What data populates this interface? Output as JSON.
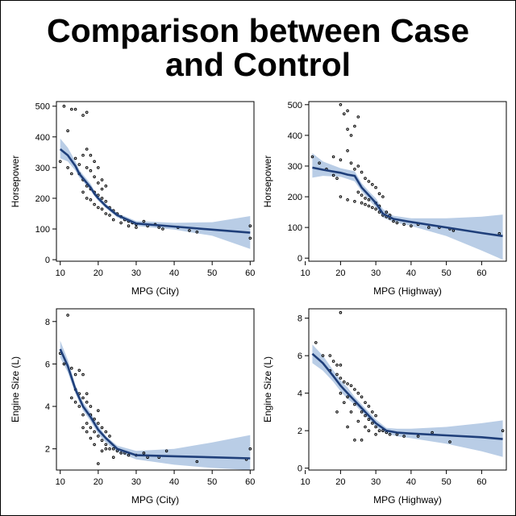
{
  "title_lines": [
    "Comparison between Case",
    "and Control"
  ],
  "colors": {
    "background": "#ffffff",
    "frame": "#000000",
    "fit_line": "#1f3f7a",
    "confidence_band": "#b9cde6",
    "points": "#000000"
  },
  "chart_data": [
    {
      "type": "scatter",
      "xlabel": "MPG (City)",
      "ylabel": "Horsepower",
      "xlim": [
        9,
        61
      ],
      "ylim": [
        -5,
        515
      ],
      "xticks": [
        10,
        20,
        30,
        40,
        50,
        60
      ],
      "yticks": [
        0,
        100,
        200,
        300,
        400,
        500
      ],
      "grid": false,
      "points": [
        [
          11,
          500
        ],
        [
          12,
          420
        ],
        [
          13,
          490
        ],
        [
          14,
          490
        ],
        [
          16,
          470
        ],
        [
          17,
          480
        ],
        [
          14,
          330
        ],
        [
          15,
          310
        ],
        [
          16,
          340
        ],
        [
          17,
          360
        ],
        [
          17,
          300
        ],
        [
          18,
          340
        ],
        [
          18,
          290
        ],
        [
          19,
          320
        ],
        [
          19,
          270
        ],
        [
          20,
          300
        ],
        [
          20,
          250
        ],
        [
          21,
          260
        ],
        [
          21,
          230
        ],
        [
          22,
          240
        ],
        [
          15,
          280
        ],
        [
          16,
          260
        ],
        [
          17,
          240
        ],
        [
          18,
          230
        ],
        [
          19,
          220
        ],
        [
          20,
          210
        ],
        [
          21,
          200
        ],
        [
          22,
          190
        ],
        [
          23,
          170
        ],
        [
          24,
          160
        ],
        [
          25,
          150
        ],
        [
          26,
          140
        ],
        [
          27,
          130
        ],
        [
          28,
          125
        ],
        [
          29,
          120
        ],
        [
          30,
          115
        ],
        [
          32,
          125
        ],
        [
          33,
          110
        ],
        [
          35,
          115
        ],
        [
          36,
          105
        ],
        [
          37,
          100
        ],
        [
          41,
          105
        ],
        [
          44,
          95
        ],
        [
          46,
          90
        ],
        [
          60,
          110
        ],
        [
          60,
          70
        ],
        [
          10,
          320
        ],
        [
          12,
          300
        ],
        [
          13,
          280
        ],
        [
          16,
          220
        ],
        [
          17,
          200
        ],
        [
          18,
          195
        ],
        [
          19,
          180
        ],
        [
          20,
          170
        ],
        [
          21,
          165
        ],
        [
          22,
          150
        ],
        [
          23,
          145
        ],
        [
          24,
          130
        ],
        [
          26,
          120
        ],
        [
          28,
          110
        ],
        [
          30,
          105
        ]
      ],
      "fit_x": [
        10,
        12,
        14,
        15,
        16,
        17,
        18,
        19,
        20,
        22,
        25,
        30,
        40,
        50,
        60
      ],
      "fit_y": [
        360,
        340,
        305,
        280,
        265,
        250,
        235,
        215,
        200,
        175,
        145,
        118,
        108,
        98,
        88
      ],
      "band_lower": [
        330,
        320,
        290,
        268,
        255,
        240,
        225,
        207,
        192,
        168,
        138,
        110,
        98,
        78,
        35
      ],
      "band_upper": [
        395,
        365,
        320,
        293,
        277,
        262,
        247,
        225,
        210,
        182,
        152,
        126,
        120,
        122,
        142
      ]
    },
    {
      "type": "scatter",
      "xlabel": "MPG (Highway)",
      "ylabel": "Horsepower",
      "xlim": [
        11,
        67
      ],
      "ylim": [
        -10,
        510
      ],
      "xticks": [
        10,
        20,
        30,
        40,
        50,
        60
      ],
      "yticks": [
        0,
        100,
        200,
        300,
        400,
        500
      ],
      "grid": false,
      "points": [
        [
          20,
          500
        ],
        [
          21,
          470
        ],
        [
          22,
          480
        ],
        [
          22,
          420
        ],
        [
          23,
          400
        ],
        [
          24,
          430
        ],
        [
          25,
          460
        ],
        [
          18,
          330
        ],
        [
          20,
          320
        ],
        [
          22,
          350
        ],
        [
          23,
          310
        ],
        [
          24,
          290
        ],
        [
          25,
          300
        ],
        [
          26,
          280
        ],
        [
          27,
          260
        ],
        [
          28,
          250
        ],
        [
          29,
          240
        ],
        [
          30,
          230
        ],
        [
          31,
          210
        ],
        [
          32,
          200
        ],
        [
          20,
          200
        ],
        [
          22,
          190
        ],
        [
          24,
          185
        ],
        [
          26,
          180
        ],
        [
          27,
          175
        ],
        [
          28,
          170
        ],
        [
          29,
          165
        ],
        [
          30,
          160
        ],
        [
          31,
          150
        ],
        [
          32,
          140
        ],
        [
          33,
          135
        ],
        [
          34,
          130
        ],
        [
          35,
          120
        ],
        [
          36,
          115
        ],
        [
          38,
          110
        ],
        [
          40,
          105
        ],
        [
          42,
          110
        ],
        [
          45,
          100
        ],
        [
          48,
          100
        ],
        [
          51,
          95
        ],
        [
          52,
          90
        ],
        [
          65,
          80
        ],
        [
          12,
          330
        ],
        [
          14,
          310
        ],
        [
          16,
          290
        ],
        [
          18,
          270
        ],
        [
          19,
          260
        ],
        [
          25,
          215
        ],
        [
          26,
          205
        ],
        [
          27,
          195
        ],
        [
          28,
          190
        ],
        [
          30,
          180
        ],
        [
          31,
          170
        ],
        [
          33,
          150
        ],
        [
          34,
          140
        ]
      ],
      "fit_x": [
        12,
        15,
        20,
        22,
        24,
        26,
        28,
        30,
        32,
        35,
        40,
        50,
        60,
        66
      ],
      "fit_y": [
        295,
        288,
        278,
        272,
        268,
        230,
        205,
        180,
        145,
        128,
        118,
        100,
        82,
        72
      ],
      "band_lower": [
        262,
        268,
        265,
        258,
        250,
        218,
        190,
        165,
        132,
        118,
        105,
        72,
        25,
        -5
      ],
      "band_upper": [
        342,
        315,
        293,
        288,
        283,
        244,
        218,
        195,
        160,
        138,
        130,
        130,
        135,
        142
      ]
    },
    {
      "type": "scatter",
      "xlabel": "MPG (City)",
      "ylabel": "Engine Size (L)",
      "xlim": [
        9,
        61
      ],
      "ylim": [
        1.0,
        8.6
      ],
      "xticks": [
        10,
        20,
        30,
        40,
        50,
        60
      ],
      "yticks": [
        2,
        4,
        6,
        8
      ],
      "grid": false,
      "points": [
        [
          12,
          8.3
        ],
        [
          10,
          6.5
        ],
        [
          11,
          6.0
        ],
        [
          13,
          5.8
        ],
        [
          14,
          5.5
        ],
        [
          15,
          5.7
        ],
        [
          16,
          5.5
        ],
        [
          14,
          4.8
        ],
        [
          15,
          4.6
        ],
        [
          16,
          4.4
        ],
        [
          17,
          4.2
        ],
        [
          17,
          4.6
        ],
        [
          18,
          4.0
        ],
        [
          18,
          3.6
        ],
        [
          19,
          3.4
        ],
        [
          20,
          3.2
        ],
        [
          20,
          3.8
        ],
        [
          21,
          3.0
        ],
        [
          22,
          2.8
        ],
        [
          23,
          2.6
        ],
        [
          15,
          4.0
        ],
        [
          16,
          3.6
        ],
        [
          17,
          3.2
        ],
        [
          18,
          3.0
        ],
        [
          19,
          2.8
        ],
        [
          20,
          2.6
        ],
        [
          21,
          2.4
        ],
        [
          22,
          2.2
        ],
        [
          23,
          2.0
        ],
        [
          24,
          2.0
        ],
        [
          25,
          1.9
        ],
        [
          26,
          1.8
        ],
        [
          27,
          1.8
        ],
        [
          28,
          1.7
        ],
        [
          30,
          1.7
        ],
        [
          32,
          1.8
        ],
        [
          33,
          1.6
        ],
        [
          36,
          1.6
        ],
        [
          38,
          1.9
        ],
        [
          46,
          1.4
        ],
        [
          60,
          2.0
        ],
        [
          59,
          1.5
        ],
        [
          13,
          4.4
        ],
        [
          14,
          4.2
        ],
        [
          16,
          3.0
        ],
        [
          17,
          2.8
        ],
        [
          18,
          2.5
        ],
        [
          19,
          2.2
        ],
        [
          20,
          1.3
        ],
        [
          21,
          1.9
        ],
        [
          22,
          2.0
        ],
        [
          24,
          1.6
        ]
      ],
      "fit_x": [
        10,
        12,
        14,
        16,
        18,
        20,
        22,
        25,
        30,
        40,
        50,
        60
      ],
      "fit_y": [
        6.7,
        5.9,
        4.8,
        4.0,
        3.5,
        2.9,
        2.5,
        2.0,
        1.7,
        1.65,
        1.6,
        1.55
      ],
      "band_lower": [
        6.3,
        5.6,
        4.6,
        3.8,
        3.3,
        2.7,
        2.3,
        1.85,
        1.5,
        1.25,
        1.1,
        1.0
      ],
      "band_upper": [
        7.1,
        6.2,
        5.0,
        4.2,
        3.7,
        3.1,
        2.6,
        2.15,
        1.9,
        2.0,
        2.3,
        2.65
      ]
    },
    {
      "type": "scatter",
      "xlabel": "MPG (Highway)",
      "ylabel": "Engine Size (L)",
      "xlim": [
        11,
        67
      ],
      "ylim": [
        -0.1,
        8.5
      ],
      "xticks": [
        10,
        20,
        30,
        40,
        50,
        60
      ],
      "yticks": [
        0,
        2,
        4,
        6,
        8
      ],
      "grid": false,
      "points": [
        [
          20,
          8.3
        ],
        [
          13,
          6.7
        ],
        [
          15,
          6.0
        ],
        [
          17,
          6.0
        ],
        [
          18,
          5.7
        ],
        [
          19,
          5.5
        ],
        [
          20,
          5.5
        ],
        [
          17,
          5.2
        ],
        [
          19,
          5.0
        ],
        [
          20,
          4.8
        ],
        [
          21,
          4.6
        ],
        [
          22,
          4.5
        ],
        [
          23,
          4.4
        ],
        [
          24,
          4.2
        ],
        [
          25,
          4.0
        ],
        [
          26,
          3.8
        ],
        [
          27,
          3.5
        ],
        [
          28,
          3.3
        ],
        [
          29,
          3.0
        ],
        [
          30,
          2.8
        ],
        [
          20,
          4.0
        ],
        [
          22,
          3.8
        ],
        [
          24,
          3.4
        ],
        [
          26,
          3.0
        ],
        [
          27,
          2.8
        ],
        [
          28,
          2.6
        ],
        [
          29,
          2.4
        ],
        [
          30,
          2.2
        ],
        [
          31,
          2.0
        ],
        [
          32,
          2.0
        ],
        [
          33,
          1.9
        ],
        [
          34,
          1.8
        ],
        [
          36,
          1.8
        ],
        [
          38,
          1.7
        ],
        [
          42,
          1.7
        ],
        [
          46,
          1.9
        ],
        [
          51,
          1.4
        ],
        [
          66,
          2.0
        ],
        [
          21,
          3.5
        ],
        [
          23,
          3.0
        ],
        [
          25,
          2.5
        ],
        [
          27,
          2.2
        ],
        [
          28,
          2.0
        ],
        [
          30,
          1.8
        ],
        [
          24,
          1.5
        ],
        [
          26,
          1.5
        ],
        [
          22,
          2.2
        ],
        [
          19,
          3.0
        ]
      ],
      "fit_x": [
        12,
        15,
        18,
        20,
        22,
        24,
        26,
        28,
        30,
        33,
        36,
        40,
        50,
        60,
        66
      ],
      "fit_y": [
        6.1,
        5.6,
        4.9,
        4.4,
        4.0,
        3.6,
        3.2,
        2.8,
        2.4,
        2.0,
        1.9,
        1.85,
        1.75,
        1.65,
        1.55
      ],
      "band_lower": [
        5.6,
        5.2,
        4.6,
        4.1,
        3.7,
        3.4,
        3.0,
        2.6,
        2.2,
        1.85,
        1.7,
        1.6,
        1.3,
        0.9,
        0.6
      ],
      "band_upper": [
        6.6,
        6.0,
        5.2,
        4.7,
        4.3,
        3.8,
        3.4,
        3.0,
        2.6,
        2.15,
        2.1,
        2.1,
        2.2,
        2.4,
        2.55
      ]
    }
  ]
}
